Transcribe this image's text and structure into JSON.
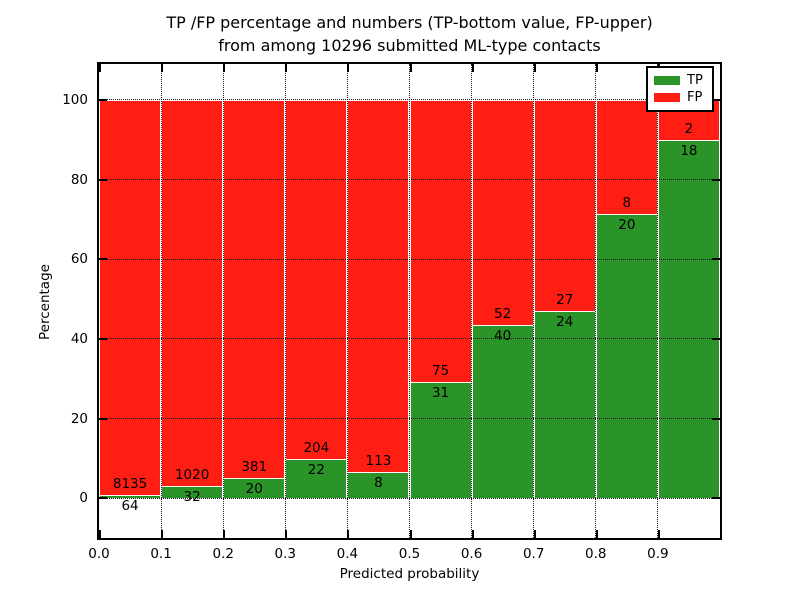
{
  "title": {
    "line1": "TP /FP percentage and numbers (TP-bottom value, FP-upper)",
    "line2": "from among 10296 submitted ML-type contacts"
  },
  "axes": {
    "x_label": "Predicted probability",
    "y_label": "Percentage",
    "x_tick_labels": [
      "0.0",
      "0.1",
      "0.2",
      "0.3",
      "0.4",
      "0.5",
      "0.6",
      "0.7",
      "0.8",
      "0.9"
    ],
    "y_tick_labels": [
      "0",
      "20",
      "40",
      "60",
      "80",
      "100"
    ],
    "y_tick_values": [
      0,
      20,
      40,
      60,
      80,
      100
    ]
  },
  "legend": {
    "entries": [
      {
        "label": "TP",
        "color": "#2b9428"
      },
      {
        "label": "FP",
        "color": "#ff1e14"
      }
    ]
  },
  "colors": {
    "tp_green": "#2b9428",
    "fp_red": "#ff1e14",
    "bar_edge": "#ffffff",
    "frame": "#000000",
    "grid": "#1a1a1a",
    "text": "#000000",
    "background": "#ffffff"
  },
  "chart_data": {
    "type": "bar",
    "stacked": true,
    "normalized_to_percent": true,
    "title": "TP /FP percentage and numbers (TP-bottom value, FP-upper) from among 10296 submitted ML-type contacts",
    "xlabel": "Predicted probability",
    "ylabel": "Percentage",
    "xlim": [
      0.0,
      1.0
    ],
    "ylim": [
      -10,
      109
    ],
    "bin_width": 0.1,
    "bin_starts": [
      0.0,
      0.1,
      0.2,
      0.3,
      0.4,
      0.5,
      0.6,
      0.7,
      0.8,
      0.9
    ],
    "total_contacts": 10296,
    "series": [
      {
        "name": "TP",
        "position": "bottom",
        "color": "#2b9428",
        "counts": [
          64,
          32,
          20,
          22,
          8,
          31,
          40,
          24,
          20,
          18
        ]
      },
      {
        "name": "FP",
        "position": "top",
        "color": "#ff1e14",
        "counts": [
          8135,
          1020,
          381,
          204,
          113,
          75,
          52,
          27,
          8,
          2
        ]
      }
    ],
    "tp_percent": [
      0.78,
      3.04,
      4.99,
      9.73,
      6.61,
      29.25,
      43.48,
      47.06,
      71.43,
      90.0
    ],
    "grid": "dotted, drawn over bars",
    "legend_position": "upper right"
  }
}
